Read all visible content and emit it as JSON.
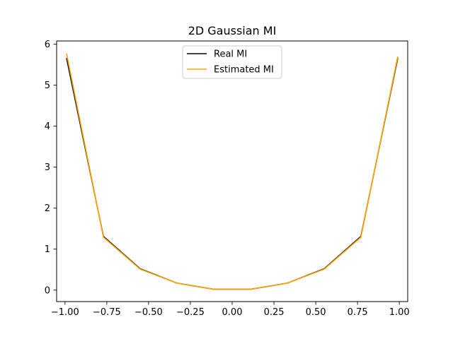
{
  "chart_data": {
    "type": "line",
    "title": "2D Gaussian MI",
    "xlabel": "",
    "ylabel": "",
    "xlim": [
      -1.05,
      1.05
    ],
    "ylim": [
      -0.28,
      6.08
    ],
    "x_ticks": [
      -1.0,
      -0.75,
      -0.5,
      -0.25,
      0.0,
      0.25,
      0.5,
      0.75,
      1.0
    ],
    "x_tick_labels": [
      "−1.00",
      "−0.75",
      "−0.50",
      "−0.25",
      "0.00",
      "0.25",
      "0.50",
      "0.75",
      "1.00"
    ],
    "y_ticks": [
      0,
      1,
      2,
      3,
      4,
      5,
      6
    ],
    "y_tick_labels": [
      "0",
      "1",
      "2",
      "3",
      "4",
      "5",
      "6"
    ],
    "grid": false,
    "legend_position": "top-center",
    "series": [
      {
        "name": "Real MI",
        "color": "#000000",
        "x": [
          -0.99,
          -0.77,
          -0.55,
          -0.33,
          -0.11,
          0.11,
          0.33,
          0.55,
          0.77,
          0.99
        ],
        "values": [
          5.65,
          1.31,
          0.52,
          0.17,
          0.02,
          0.02,
          0.17,
          0.52,
          1.31,
          5.65
        ]
      },
      {
        "name": "Estimated MI",
        "color": "#ffa500",
        "x": [
          -0.99,
          -0.77,
          -0.55,
          -0.33,
          -0.11,
          0.11,
          0.33,
          0.55,
          0.77,
          0.99
        ],
        "values": [
          5.76,
          1.29,
          0.51,
          0.17,
          0.02,
          0.02,
          0.17,
          0.51,
          1.29,
          5.69
        ]
      }
    ]
  }
}
